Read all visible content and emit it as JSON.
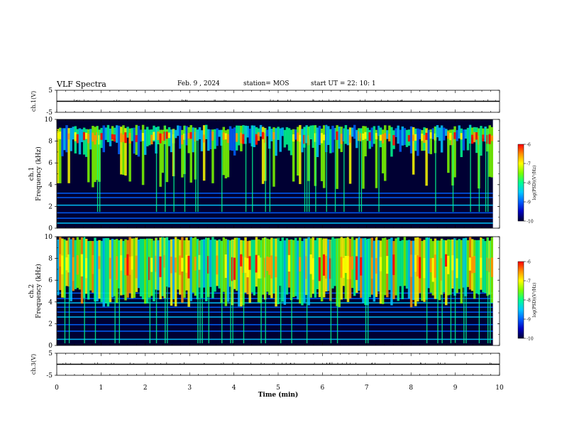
{
  "header": {
    "title": "VLF Spectra",
    "date": "Feb. 9 , 2024",
    "station": "station= MOS",
    "start": "start UT =  22: 10: 1"
  },
  "colors": {
    "spectrum": [
      "#000033",
      "#0000c0",
      "#0060ff",
      "#00c8ff",
      "#00ff90",
      "#7cff00",
      "#ffff00",
      "#ff9000",
      "#ff0000",
      "#ffffff"
    ]
  },
  "chart_data": [
    {
      "type": "line",
      "id": "ch1-voltage",
      "ylabel": "ch.1(V)",
      "ylim": [
        -5,
        5
      ],
      "yticks": [
        "5",
        "-5"
      ],
      "xlim": [
        0,
        10
      ],
      "x": [
        0,
        10
      ],
      "values": [
        0,
        0
      ]
    },
    {
      "type": "heatmap",
      "id": "ch1-spectrogram",
      "ylabel_line1": "ch.1",
      "ylabel_line2": "Frequency (kHz)",
      "ylim": [
        0,
        10
      ],
      "yticks": [
        "0",
        "2",
        "4",
        "6",
        "8",
        "10"
      ],
      "xlim": [
        0,
        10
      ],
      "data_end_min": 9.85,
      "colorbar": {
        "label": "log(PSD)(V²/Hz)",
        "range": [
          -10,
          -6
        ],
        "ticks": [
          "-6",
          "-7",
          "-8",
          "-9",
          "-10"
        ]
      }
    },
    {
      "type": "heatmap",
      "id": "ch2-spectrogram",
      "ylabel_line1": "ch.2",
      "ylabel_line2": "Frequency (kHz)",
      "ylim": [
        0,
        10
      ],
      "yticks": [
        "0",
        "2",
        "4",
        "6",
        "8",
        "10"
      ],
      "xlim": [
        0,
        10
      ],
      "data_end_min": 9.85,
      "colorbar": {
        "label": "log(PSD)(V²/Hz)",
        "range": [
          -10,
          -6
        ],
        "ticks": [
          "-6",
          "-7",
          "-8",
          "-9",
          "-10"
        ]
      }
    },
    {
      "type": "line",
      "id": "ch3-voltage",
      "ylabel": "ch.3(V)",
      "ylim": [
        -5,
        5
      ],
      "yticks": [
        "5",
        "-5"
      ],
      "xlim": [
        0,
        10
      ],
      "x": [
        0,
        10
      ],
      "values": [
        0,
        0
      ],
      "xlabel": "Time  (min)",
      "xticks": [
        "0",
        "1",
        "2",
        "3",
        "4",
        "5",
        "6",
        "7",
        "8",
        "9",
        "10"
      ]
    }
  ]
}
